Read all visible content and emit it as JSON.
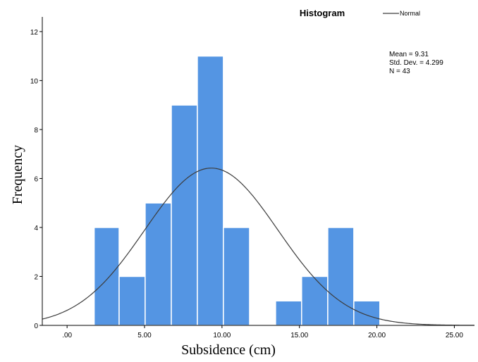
{
  "chart_data": {
    "type": "bar",
    "title": "Histogram",
    "xlabel": "Subsidence (cm)",
    "ylabel": "Frequency",
    "xlim": [
      -1.6,
      26.3
    ],
    "ylim": [
      0,
      12.6
    ],
    "x_ticks": [
      {
        "value": 0,
        "label": ".00"
      },
      {
        "value": 5,
        "label": "5.00"
      },
      {
        "value": 10,
        "label": "10.00"
      },
      {
        "value": 15,
        "label": "15.00"
      },
      {
        "value": 20,
        "label": "20.00"
      },
      {
        "value": 25,
        "label": "25.00"
      }
    ],
    "y_ticks": [
      0,
      2,
      4,
      6,
      8,
      10,
      12
    ],
    "bins": [
      {
        "start": 1.75,
        "end": 3.36,
        "count": 4
      },
      {
        "start": 3.36,
        "end": 5.04,
        "count": 2
      },
      {
        "start": 5.04,
        "end": 6.73,
        "count": 5
      },
      {
        "start": 6.73,
        "end": 8.41,
        "count": 9
      },
      {
        "start": 8.41,
        "end": 10.09,
        "count": 11
      },
      {
        "start": 10.09,
        "end": 11.78,
        "count": 4
      },
      {
        "start": 11.78,
        "end": 13.46,
        "count": 0
      },
      {
        "start": 13.46,
        "end": 15.14,
        "count": 1
      },
      {
        "start": 15.14,
        "end": 16.83,
        "count": 2
      },
      {
        "start": 16.83,
        "end": 18.51,
        "count": 4
      },
      {
        "start": 18.51,
        "end": 20.19,
        "count": 1
      }
    ],
    "normal_curve": {
      "mean": 9.31,
      "std_dev": 4.299,
      "n": 43
    },
    "legend": {
      "entries": [
        "Normal"
      ],
      "placement": "top-right"
    },
    "stats": [
      "Mean = 9.31",
      "Std. Dev. = 4.299",
      "N = 43"
    ],
    "grid": false,
    "colors": {
      "bar_fill": "#5495e3",
      "bar_stroke": "#ffffff",
      "curve": "#3c3c3c",
      "axis": "#000000"
    }
  }
}
